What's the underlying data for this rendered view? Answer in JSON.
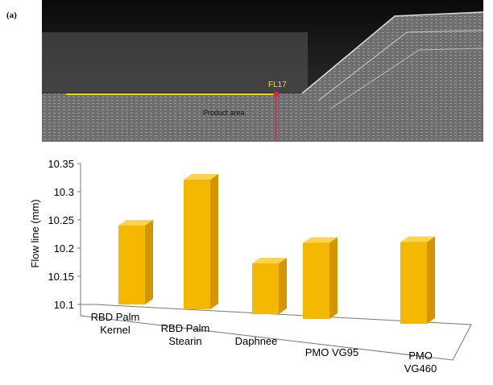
{
  "panel_label": "(a)",
  "image": {
    "marker_label": "FL17",
    "region_label": "Product area"
  },
  "chart_data": {
    "type": "bar3d",
    "y_label": "Flow line (mm)",
    "categories": [
      "RBD Palm\nKernel",
      "RBD Palm\nStearin",
      "Daphnee",
      "PMO VG95",
      "PMO\nVG460"
    ],
    "values": [
      10.24,
      10.33,
      10.19,
      10.235,
      10.245
    ],
    "color": "#f5b800",
    "ylim": [
      10.1,
      10.35
    ],
    "yticks": [
      10.1,
      10.15,
      10.2,
      10.25,
      10.3,
      10.35
    ]
  }
}
